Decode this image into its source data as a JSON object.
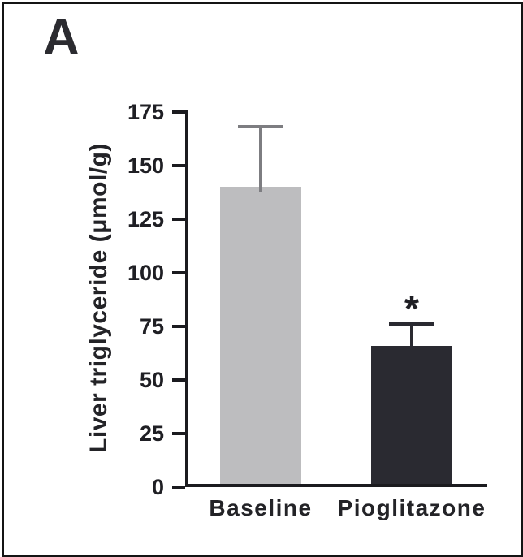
{
  "panel": {
    "label": "A"
  },
  "chart_data": {
    "type": "bar",
    "title": "",
    "xlabel": "",
    "ylabel": "Liver triglyceride (μmol/g)",
    "categories": [
      "Baseline",
      "Pioglitazone"
    ],
    "values": [
      140,
      66
    ],
    "errors_upper": [
      29,
      11
    ],
    "yticks": [
      0,
      25,
      50,
      75,
      100,
      125,
      150,
      175
    ],
    "ylim": [
      0,
      175
    ],
    "grid": false,
    "legend": "none",
    "annotations": [
      {
        "category_index": 1,
        "text": "*"
      }
    ],
    "bar_colors": [
      "#bdbdbf",
      "#2a2a31"
    ],
    "error_colors": [
      "#7d7d81",
      "#2a2a31"
    ],
    "axis_color": "#1b1b1f"
  }
}
